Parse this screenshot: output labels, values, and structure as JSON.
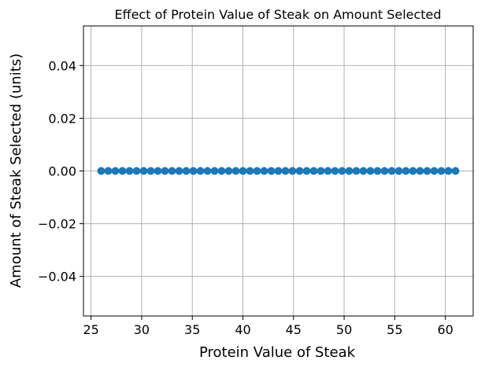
{
  "chart_data": {
    "type": "line",
    "title": "Effect of Protein Value of Steak on Amount Selected",
    "xlabel": "Protein Value of Steak",
    "ylabel": "Amount of Steak Selected (units)",
    "xlim": [
      24.25,
      62.75
    ],
    "ylim": [
      -0.055,
      0.055
    ],
    "x_ticks": [
      25,
      30,
      35,
      40,
      45,
      50,
      55,
      60
    ],
    "x_tick_labels": [
      "25",
      "30",
      "35",
      "40",
      "45",
      "50",
      "55",
      "60"
    ],
    "y_ticks": [
      -0.04,
      -0.02,
      0.0,
      0.02,
      0.04
    ],
    "y_tick_labels": [
      "−0.04",
      "−0.02",
      "0.00",
      "0.02",
      "0.04"
    ],
    "grid": true,
    "marker": "circle",
    "series": [
      {
        "color": "#1f77b4",
        "x": [
          26,
          26.7,
          27.4,
          28.1,
          28.8,
          29.5,
          30.2,
          30.9,
          31.6,
          32.3,
          33,
          33.7,
          34.4,
          35.1,
          35.8,
          36.5,
          37.2,
          37.9,
          38.6,
          39.3,
          40,
          40.7,
          41.4,
          42.1,
          42.8,
          43.5,
          44.2,
          44.9,
          45.6,
          46.3,
          47,
          47.7,
          48.4,
          49.1,
          49.8,
          50.5,
          51.2,
          51.9,
          52.6,
          53.3,
          54,
          54.7,
          55.4,
          56.1,
          56.8,
          57.5,
          58.2,
          58.9,
          59.6,
          60.3,
          61
        ],
        "y": [
          0,
          0,
          0,
          0,
          0,
          0,
          0,
          0,
          0,
          0,
          0,
          0,
          0,
          0,
          0,
          0,
          0,
          0,
          0,
          0,
          0,
          0,
          0,
          0,
          0,
          0,
          0,
          0,
          0,
          0,
          0,
          0,
          0,
          0,
          0,
          0,
          0,
          0,
          0,
          0,
          0,
          0,
          0,
          0,
          0,
          0,
          0,
          0,
          0,
          0,
          0
        ]
      }
    ]
  }
}
